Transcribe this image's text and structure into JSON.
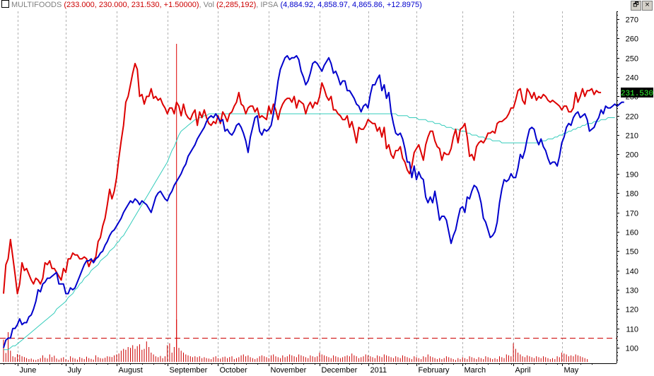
{
  "header": {
    "sym1": "MULTIFOODS",
    "sym1_vals": "(233.000, 230.000, 231.530, +1.50000)",
    "vol_label": "Vol",
    "vol_vals": "(2,285,192)",
    "sym2": "IPSA",
    "sym2_vals": "(4,884.92, 4,858.97, 4,865.86, +12.8975)",
    "restore_glyph": "🗗",
    "close_glyph": "×",
    "sym1_color": "#808080",
    "vals1_color": "#cc0000",
    "sym2_color": "#808080",
    "vals2_color": "#0000cc"
  },
  "last_price_label": "231.530",
  "chart_data": {
    "type": "line",
    "title": "",
    "ylim": [
      92,
      274
    ],
    "y_ticks": [
      100,
      110,
      120,
      130,
      140,
      150,
      160,
      170,
      180,
      190,
      200,
      210,
      220,
      230,
      240,
      250,
      260,
      270
    ],
    "grid": "vertical dashed at month starts",
    "months": [
      "June",
      "July",
      "August",
      "September",
      "October",
      "November",
      "December",
      "2011",
      "February",
      "March",
      "April",
      "May"
    ],
    "month_start_index": [
      6,
      27,
      49,
      71,
      93,
      115,
      137,
      158,
      179,
      199,
      221,
      242
    ],
    "n_days": 256,
    "reference_line": 105,
    "series": [
      {
        "name": "MULTIFOODS",
        "color": "#dd0000",
        "values": [
          128,
          143,
          146,
          156,
          147,
          138,
          128,
          133,
          144,
          140,
          141,
          138,
          135,
          133,
          136,
          135,
          133,
          136,
          144,
          143,
          145,
          141,
          141,
          139,
          137,
          135,
          141,
          139,
          146,
          146,
          149,
          148,
          148,
          146,
          146,
          147,
          146,
          142,
          145,
          145,
          147,
          155,
          157,
          163,
          167,
          174,
          182,
          177,
          181,
          188,
          198,
          207,
          215,
          227,
          230,
          236,
          242,
          247,
          244,
          230,
          231,
          226,
          230,
          230,
          234,
          229,
          230,
          228,
          229,
          226,
          224,
          221,
          224,
          224,
          221,
          227,
          225,
          220,
          226,
          221,
          219,
          218,
          221,
          223,
          215,
          222,
          219,
          223,
          219,
          216,
          215,
          217,
          216,
          220,
          216,
          222,
          220,
          217,
          221,
          222,
          225,
          227,
          232,
          226,
          225,
          221,
          224,
          225,
          225,
          222,
          224,
          219,
          220,
          219,
          218,
          225,
          221,
          226,
          223,
          218,
          223,
          226,
          228,
          229,
          229,
          227,
          230,
          224,
          228,
          227,
          226,
          221,
          225,
          227,
          224,
          227,
          226,
          230,
          237,
          234,
          230,
          228,
          230,
          223,
          223,
          221,
          220,
          218,
          218,
          220,
          214,
          217,
          212,
          206,
          214,
          213,
          213,
          215,
          218,
          217,
          216,
          216,
          212,
          214,
          209,
          214,
          203,
          205,
          200,
          198,
          202,
          202,
          204,
          198,
          196,
          192,
          190,
          194,
          201,
          203,
          205,
          201,
          197,
          205,
          209,
          212,
          212,
          207,
          204,
          203,
          197,
          201,
          200,
          200,
          203,
          209,
          213,
          206,
          213,
          214,
          216,
          209,
          199,
          200,
          197,
          204,
          206,
          207,
          206,
          208,
          211,
          211,
          212,
          211,
          216,
          217,
          217,
          218,
          219,
          221,
          224,
          224,
          228,
          233,
          234,
          228,
          226,
          234,
          232,
          229,
          232,
          228,
          230,
          229,
          231,
          230,
          228,
          227,
          228,
          227,
          226,
          225,
          223,
          225,
          225,
          222,
          222,
          224,
          232,
          227,
          230,
          234,
          230,
          233,
          233,
          234,
          231,
          233,
          232,
          232
        ]
      },
      {
        "name": "IPSA",
        "color": "#0000cc",
        "values": [
          100,
          104,
          105,
          105,
          110,
          110,
          112,
          115,
          112,
          113,
          113,
          116,
          117,
          120,
          124,
          130,
          129,
          133,
          134,
          136,
          136,
          137,
          138,
          139,
          133,
          133,
          133,
          128,
          128,
          131,
          130,
          131,
          134,
          137,
          140,
          143,
          145,
          145,
          146,
          144,
          146,
          147,
          149,
          150,
          153,
          155,
          158,
          160,
          161,
          163,
          165,
          167,
          170,
          172,
          174,
          176,
          175,
          177,
          176,
          174,
          176,
          175,
          174,
          172,
          170,
          174,
          178,
          180,
          181,
          179,
          177,
          176,
          179,
          181,
          184,
          186,
          188,
          190,
          193,
          195,
          199,
          201,
          203,
          205,
          208,
          210,
          212,
          214,
          217,
          219,
          220,
          219,
          221,
          219,
          217,
          218,
          212,
          213,
          211,
          210,
          212,
          215,
          216,
          214,
          211,
          207,
          201,
          209,
          214,
          219,
          220,
          212,
          210,
          213,
          212,
          213,
          215,
          221,
          229,
          238,
          244,
          247,
          250,
          251,
          249,
          250,
          250,
          251,
          249,
          243,
          240,
          236,
          238,
          242,
          247,
          248,
          247,
          245,
          243,
          246,
          248,
          250,
          247,
          242,
          243,
          240,
          236,
          238,
          238,
          233,
          233,
          231,
          229,
          226,
          225,
          222,
          225,
          226,
          224,
          231,
          236,
          236,
          239,
          241,
          233,
          236,
          229,
          232,
          222,
          216,
          211,
          210,
          211,
          208,
          203,
          196,
          196,
          188,
          194,
          187,
          191,
          188,
          187,
          178,
          175,
          178,
          175,
          181,
          174,
          166,
          168,
          168,
          166,
          160,
          154,
          158,
          161,
          167,
          172,
          173,
          170,
          178,
          177,
          181,
          184,
          183,
          180,
          175,
          167,
          165,
          161,
          157,
          158,
          160,
          165,
          175,
          182,
          187,
          186,
          187,
          190,
          188,
          188,
          193,
          200,
          198,
          202,
          208,
          213,
          214,
          213,
          208,
          205,
          208,
          204,
          202,
          198,
          195,
          196,
          196,
          194,
          199,
          206,
          209,
          214,
          216,
          215,
          219,
          221,
          222,
          219,
          220,
          221,
          218,
          212,
          213,
          214,
          217,
          219,
          223,
          221,
          225,
          224,
          224,
          225,
          226,
          225,
          226,
          227,
          227
        ]
      },
      {
        "name": "moving average",
        "color": "#33ccbb",
        "values": [
          99,
          99,
          99,
          100,
          101,
          101,
          102,
          103,
          104,
          105,
          106,
          107,
          108,
          109,
          110,
          111,
          112,
          113,
          114,
          115,
          116,
          117,
          118,
          120,
          121,
          122,
          123,
          124,
          126,
          127,
          128,
          130,
          131,
          133,
          134,
          136,
          137,
          138,
          140,
          141,
          142,
          143,
          145,
          146,
          147,
          148,
          150,
          151,
          152,
          154,
          155,
          157,
          158,
          160,
          162,
          164,
          166,
          168,
          170,
          172,
          174,
          176,
          178,
          180,
          182,
          184,
          186,
          188,
          190,
          192,
          194,
          196,
          199,
          202,
          204,
          207,
          210,
          212,
          213,
          214,
          215,
          216,
          217,
          218,
          218,
          219,
          219,
          220,
          220,
          221,
          221,
          221,
          221,
          221,
          221,
          221,
          221,
          221,
          221,
          221,
          221,
          221,
          221,
          221,
          221,
          221,
          221,
          221,
          221,
          221,
          221,
          221,
          221,
          221,
          221,
          221,
          221,
          221,
          221,
          221,
          221,
          221,
          221,
          221,
          221,
          221,
          221,
          221,
          221,
          221,
          221,
          221,
          221,
          221,
          221,
          221,
          221,
          221,
          221,
          221,
          221,
          221,
          221,
          221,
          221,
          221,
          221,
          221,
          221,
          221,
          221,
          221,
          221,
          221,
          221,
          221,
          221,
          221,
          221,
          221,
          221,
          221,
          221,
          221,
          221,
          221,
          221,
          221,
          221,
          221,
          221,
          220,
          220,
          220,
          220,
          220,
          219,
          219,
          219,
          219,
          218,
          218,
          218,
          218,
          217,
          217,
          217,
          216,
          216,
          216,
          215,
          215,
          214,
          214,
          214,
          213,
          213,
          213,
          212,
          212,
          212,
          211,
          211,
          210,
          210,
          210,
          209,
          209,
          209,
          208,
          208,
          208,
          207,
          207,
          207,
          207,
          206,
          206,
          206,
          206,
          206,
          206,
          206,
          206,
          206,
          206,
          206,
          206,
          206,
          206,
          206,
          206,
          206,
          207,
          207,
          207,
          208,
          208,
          208,
          209,
          209,
          210,
          210,
          211,
          211,
          212,
          212,
          213,
          213,
          214,
          214,
          215,
          215,
          216,
          216,
          216,
          217,
          217,
          217,
          218,
          218,
          218,
          219,
          219,
          219,
          219
        ]
      }
    ],
    "volume": {
      "name": "Vol",
      "color": "#cc0000",
      "max": 2285192,
      "values": [
        1200000,
        480000,
        1600000,
        600000,
        300000,
        250000,
        420000,
        380000,
        300000,
        260000,
        200000,
        150000,
        180000,
        120000,
        100000,
        150000,
        200000,
        350000,
        220000,
        180000,
        400000,
        260000,
        330000,
        180000,
        120000,
        200000,
        250000,
        150000,
        100000,
        300000,
        220000,
        180000,
        120000,
        260000,
        200000,
        150000,
        280000,
        200000,
        160000,
        120000,
        350000,
        250000,
        200000,
        180000,
        220000,
        300000,
        280000,
        260000,
        350000,
        400000,
        450000,
        600000,
        700000,
        650000,
        800000,
        750000,
        900000,
        700000,
        850000,
        950000,
        650000,
        700000,
        1100000,
        800000,
        500000,
        400000,
        300000,
        250000,
        320000,
        200000,
        300000,
        900000,
        1000000,
        500000,
        800000,
        2285192,
        750000,
        600000,
        500000,
        400000,
        350000,
        300000,
        250000,
        300000,
        250000,
        300000,
        200000,
        250000,
        200000,
        180000,
        150000,
        250000,
        300000,
        200000,
        180000,
        250000,
        280000,
        200000,
        260000,
        300000,
        150000,
        200000,
        250000,
        350000,
        400000,
        300000,
        350000,
        250000,
        200000,
        150000,
        200000,
        300000,
        350000,
        300000,
        250000,
        200000,
        350000,
        400000,
        300000,
        250000,
        200000,
        350000,
        250000,
        300000,
        400000,
        350000,
        300000,
        250000,
        400000,
        350000,
        300000,
        250000,
        200000,
        350000,
        300000,
        250000,
        300000,
        500000,
        400000,
        350000,
        300000,
        250000,
        200000,
        350000,
        300000,
        250000,
        200000,
        250000,
        300000,
        350000,
        300000,
        450000,
        350000,
        300000,
        200000,
        250000,
        300000,
        400000,
        350000,
        300000,
        250000,
        200000,
        350000,
        300000,
        250000,
        400000,
        350000,
        300000,
        250000,
        200000,
        300000,
        250000,
        200000,
        350000,
        300000,
        250000,
        200000,
        150000,
        300000,
        250000,
        200000,
        150000,
        300000,
        250000,
        400000,
        300000,
        250000,
        200000,
        150000,
        200000,
        150000,
        200000,
        300000,
        250000,
        200000,
        150000,
        100000,
        200000,
        150000,
        250000,
        200000,
        150000,
        300000,
        250000,
        200000,
        150000,
        250000,
        200000,
        150000,
        300000,
        250000,
        200000,
        150000,
        200000,
        150000,
        300000,
        250000,
        200000,
        400000,
        350000,
        300000,
        1000000,
        700000,
        500000,
        400000,
        300000,
        250000,
        350000,
        300000,
        250000,
        200000,
        300000,
        250000,
        200000,
        300000,
        250000,
        200000,
        150000,
        200000,
        150000,
        300000,
        250000,
        500000,
        450000,
        400000,
        300000,
        350000,
        300000,
        400000,
        350000,
        300000,
        250000,
        200000,
        150000
      ]
    }
  }
}
